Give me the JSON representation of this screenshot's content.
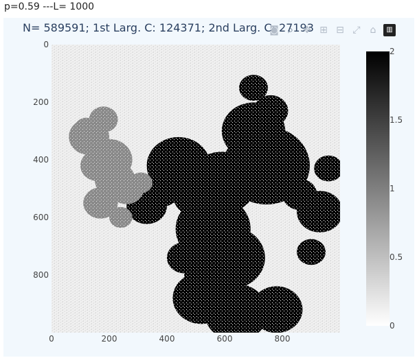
{
  "caption": "p=0.59 ---L= 1000",
  "title": "N= 589591; 1st Larg. C: 124371;  2nd Larg. C: 27193",
  "modebar": [
    {
      "name": "download-plot-icon",
      "glyph": "◙"
    },
    {
      "name": "zoom-icon",
      "glyph": "⌕"
    },
    {
      "name": "pan-icon",
      "glyph": "✥"
    },
    {
      "name": "zoom-in-icon",
      "glyph": "⊞"
    },
    {
      "name": "zoom-out-icon",
      "glyph": "⊟"
    },
    {
      "name": "autoscale-icon",
      "glyph": "⤢"
    },
    {
      "name": "reset-axes-icon",
      "glyph": "⌂"
    },
    {
      "name": "plotly-logo-icon",
      "glyph": "▥"
    }
  ],
  "chart_data": {
    "type": "heatmap",
    "title": "N= 589591; 1st Larg. C: 124371;  2nd Larg. C: 27193",
    "xlim": [
      0,
      1000
    ],
    "ylim": [
      0,
      1000
    ],
    "y_reversed": true,
    "x_ticks": [
      0,
      200,
      400,
      600,
      800
    ],
    "y_ticks": [
      0,
      200,
      400,
      600,
      800
    ],
    "colorbar": {
      "min": 0,
      "max": 2,
      "ticks": [
        "0",
        "0.5",
        "1",
        "1.5",
        "2"
      ],
      "colorscale": [
        "#ffffff",
        "#000000"
      ]
    },
    "grid": false,
    "levels": {
      "background": 0,
      "second_largest_cluster": 1,
      "largest_cluster": 2
    },
    "clusters": [
      {
        "value": 2,
        "blobs": [
          [
            745,
            420,
            150
          ],
          [
            700,
            300,
            110
          ],
          [
            590,
            480,
            120
          ],
          [
            560,
            640,
            130
          ],
          [
            620,
            740,
            120
          ],
          [
            510,
            520,
            90
          ],
          [
            440,
            420,
            110
          ],
          [
            330,
            560,
            70
          ],
          [
            380,
            500,
            70
          ],
          [
            700,
            150,
            50
          ],
          [
            760,
            230,
            60
          ],
          [
            860,
            520,
            60
          ],
          [
            930,
            580,
            80
          ],
          [
            900,
            720,
            50
          ],
          [
            960,
            430,
            50
          ],
          [
            520,
            880,
            100
          ],
          [
            640,
            930,
            110
          ],
          [
            780,
            920,
            90
          ],
          [
            540,
            800,
            80
          ],
          [
            460,
            740,
            60
          ]
        ]
      },
      {
        "value": 1,
        "blobs": [
          [
            130,
            320,
            70
          ],
          [
            180,
            260,
            50
          ],
          [
            200,
            400,
            80
          ],
          [
            220,
            470,
            70
          ],
          [
            170,
            550,
            60
          ],
          [
            260,
            500,
            60
          ],
          [
            160,
            420,
            60
          ],
          [
            240,
            600,
            40
          ],
          [
            120,
            290,
            40
          ],
          [
            310,
            480,
            40
          ]
        ]
      }
    ]
  }
}
